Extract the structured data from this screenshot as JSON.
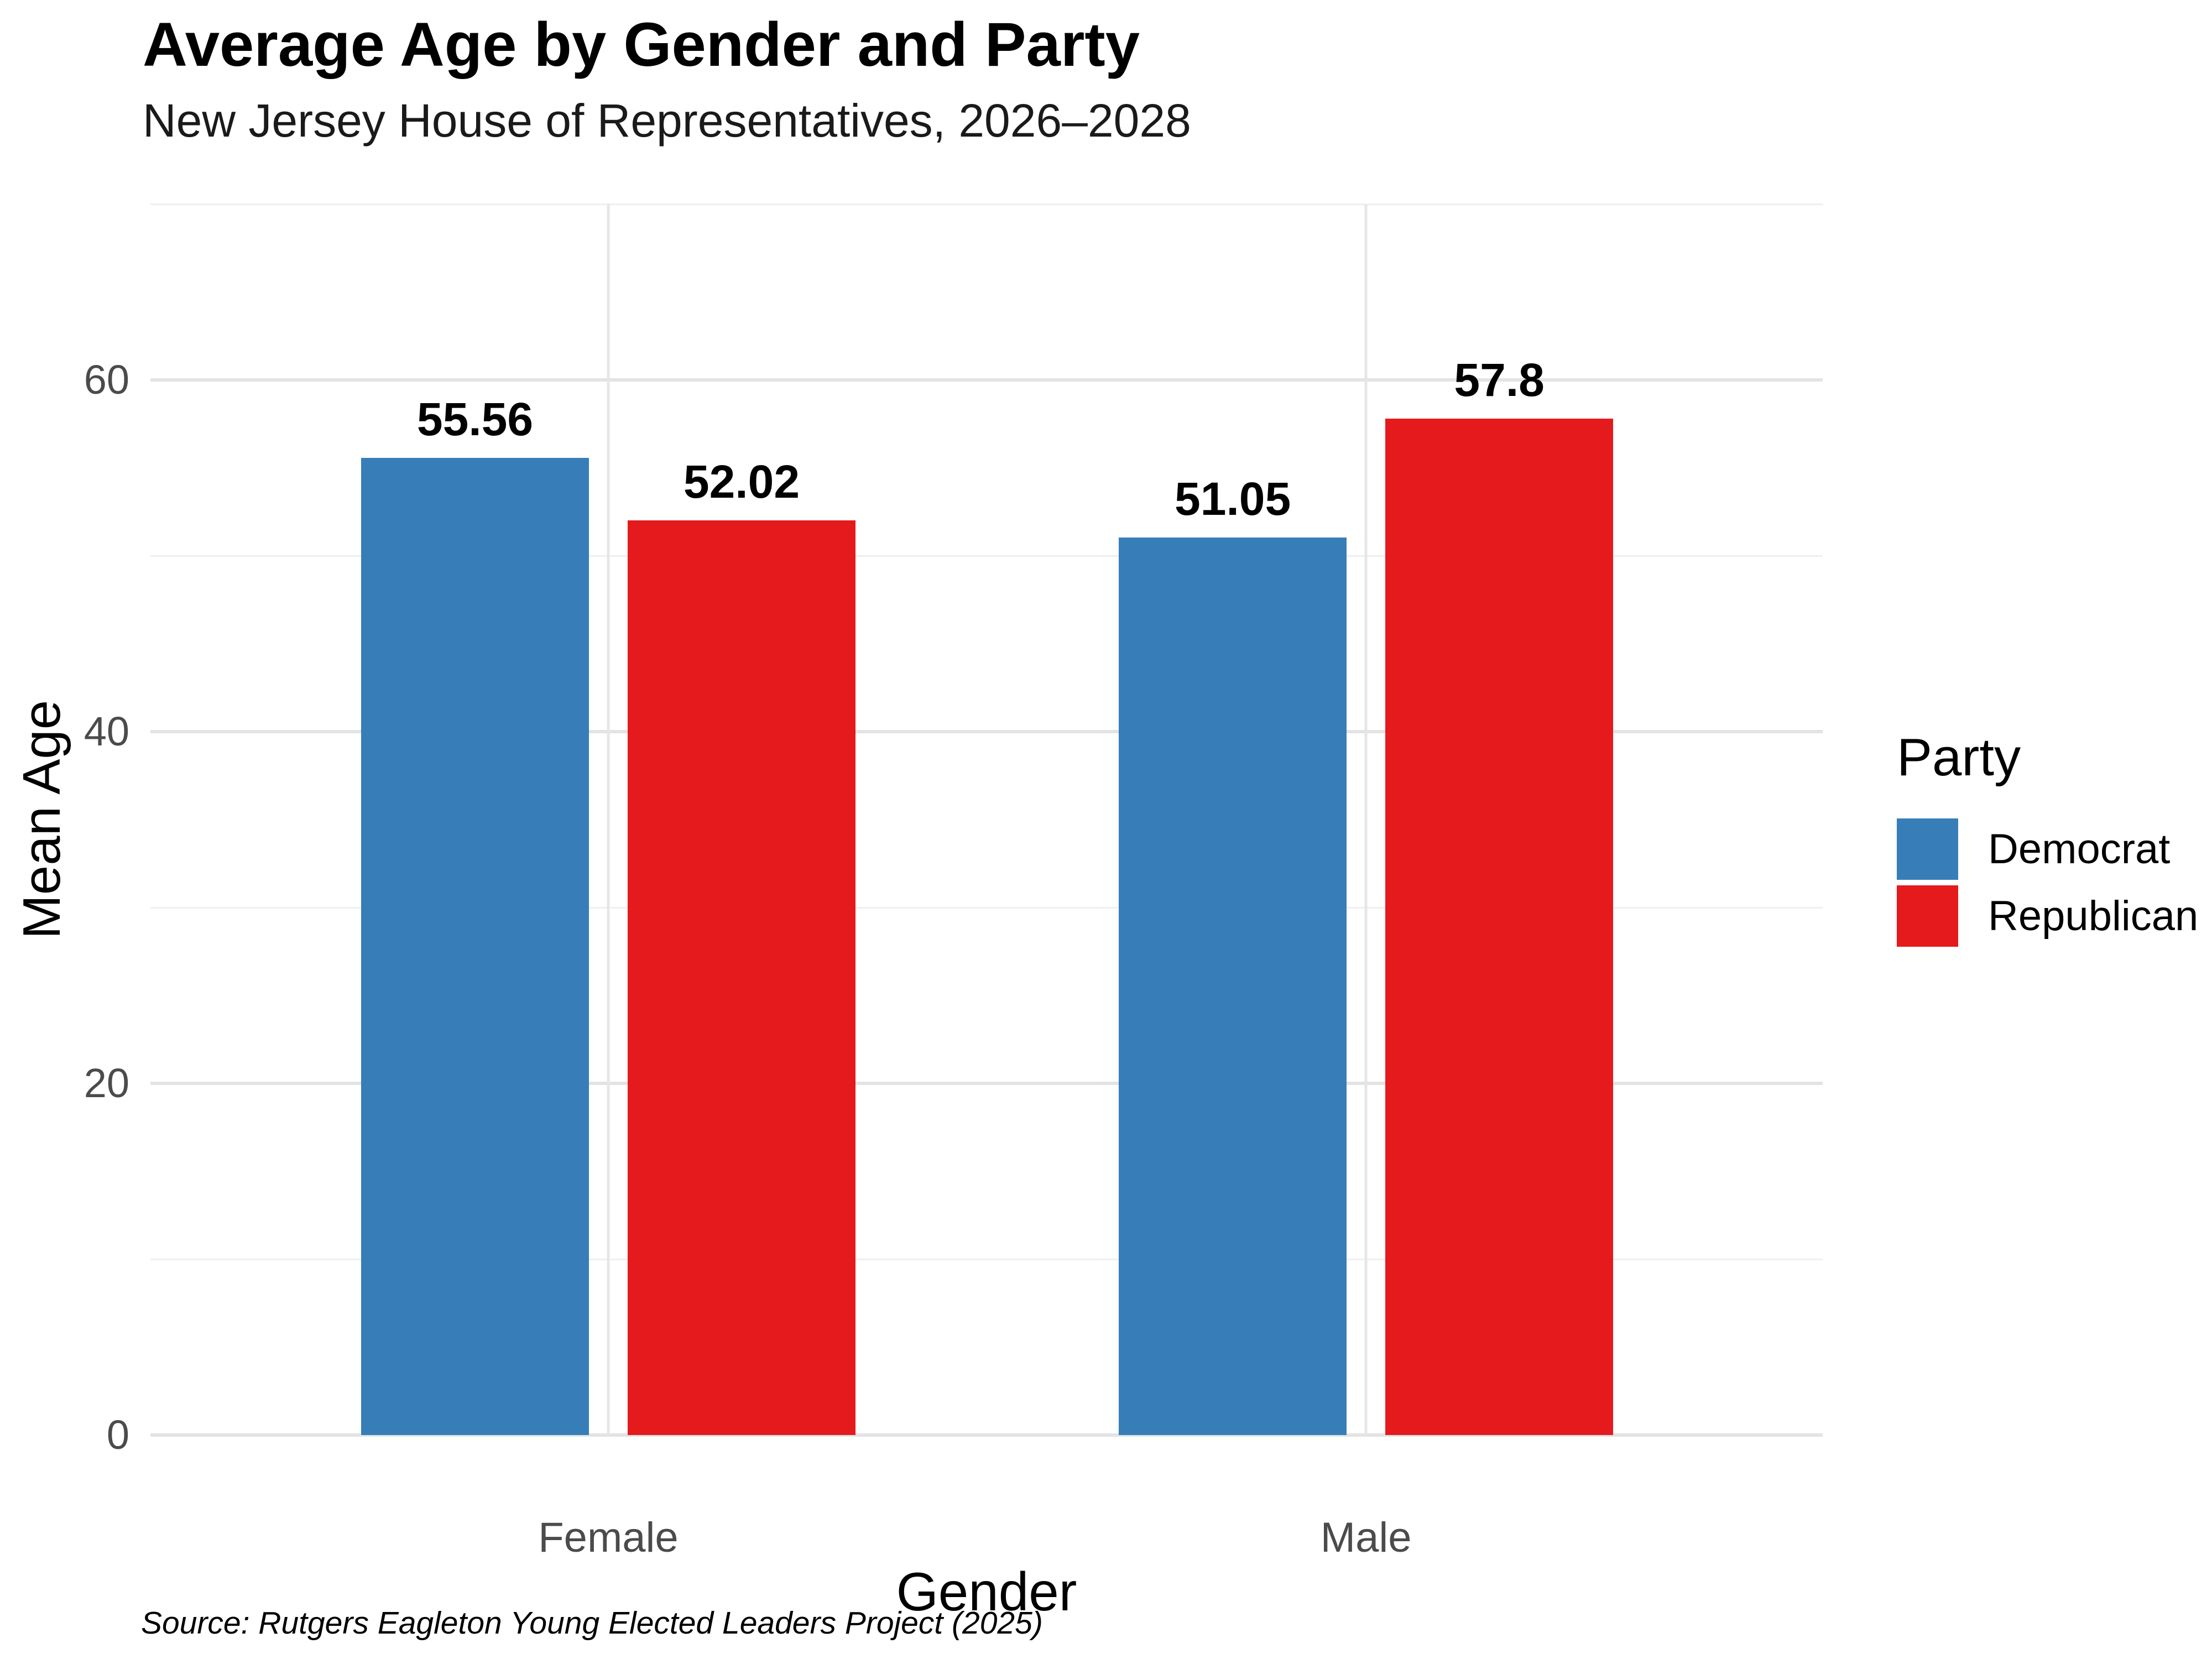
{
  "chart_data": {
    "type": "bar",
    "title": "Average Age by Gender and Party",
    "subtitle": "New Jersey House of Representatives, 2026–2028",
    "caption": "Source: Rutgers Eagleton Young Elected Leaders Project (2025)",
    "xlabel": "Gender",
    "ylabel": "Mean Age",
    "categories": [
      "Female",
      "Male"
    ],
    "series": [
      {
        "name": "Democrat",
        "color": "#377EB8",
        "values": [
          55.56,
          51.05
        ],
        "labels": [
          "55.56",
          "51.05"
        ]
      },
      {
        "name": "Republican",
        "color": "#E41A1C",
        "values": [
          52.02,
          57.8
        ],
        "labels": [
          "52.02",
          "57.8"
        ]
      }
    ],
    "ylim": [
      0,
      70
    ],
    "yticks": [
      0,
      20,
      40,
      60
    ],
    "yticks_minor": [
      10,
      30,
      50,
      70
    ],
    "grid": "major-and-minor, light gray on white",
    "legend_title": "Party",
    "legend_position": "right"
  }
}
